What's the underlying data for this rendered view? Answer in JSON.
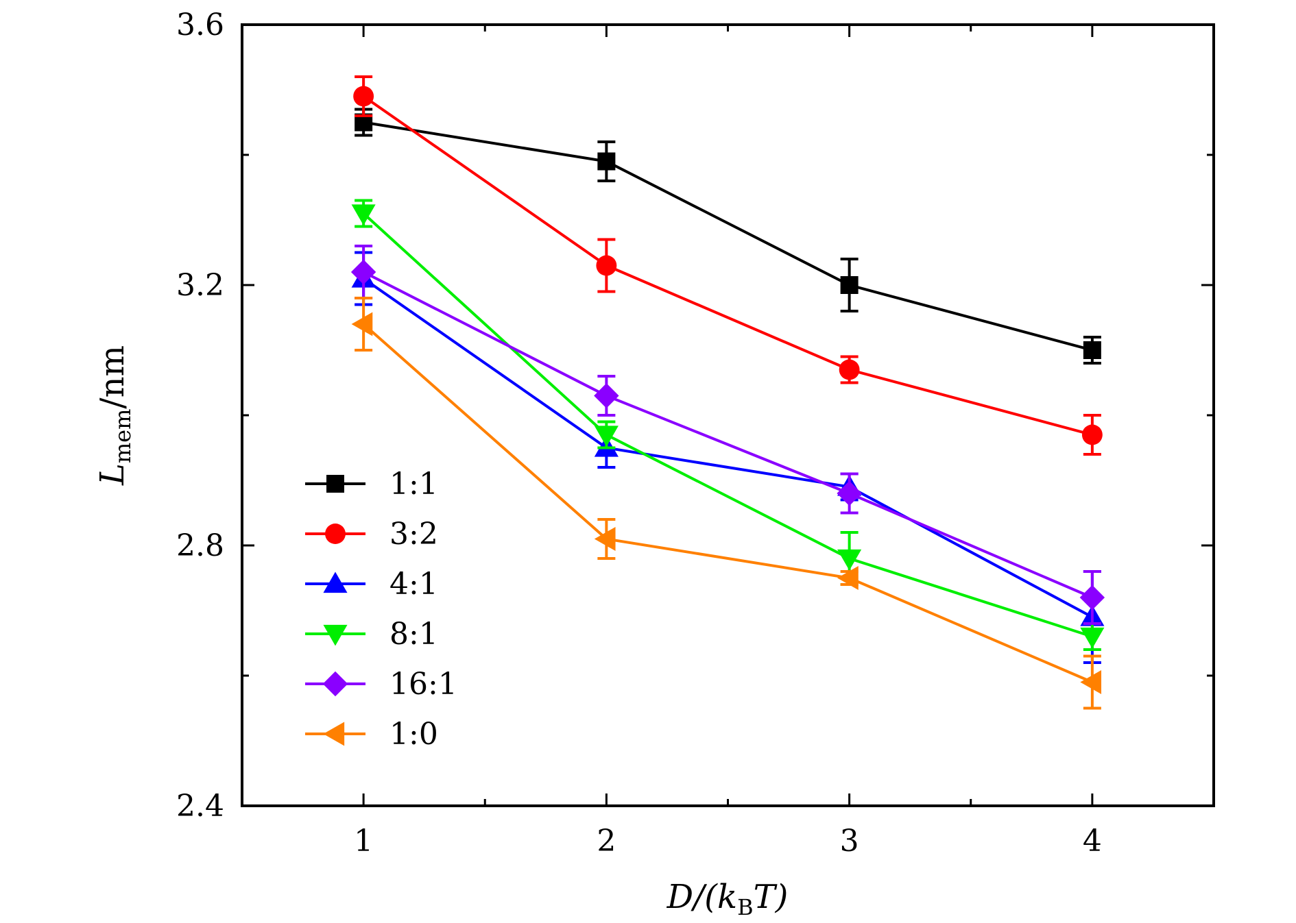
{
  "chart_data": {
    "type": "line",
    "title": "",
    "xlabel": {
      "main": "D/(k",
      "sub": "B",
      "tail": "T)"
    },
    "ylabel": {
      "main": "L",
      "sub": "mem",
      "tail": "/nm"
    },
    "x": [
      1,
      2,
      3,
      4
    ],
    "xlim": [
      0.5,
      4.5
    ],
    "ylim": [
      2.4,
      3.6
    ],
    "xticks": [
      "1",
      "2",
      "3",
      "4"
    ],
    "yticks": [
      "2.4",
      "2.8",
      "3.2",
      "3.6"
    ],
    "legend_position": "lower-left",
    "series": [
      {
        "name": "1:1",
        "color": "#000000",
        "marker": "square",
        "values": [
          3.45,
          3.39,
          3.2,
          3.1
        ],
        "errors": [
          0.02,
          0.03,
          0.04,
          0.02
        ]
      },
      {
        "name": "3:2",
        "color": "#ff0000",
        "marker": "circle",
        "values": [
          3.49,
          3.23,
          3.07,
          2.97
        ],
        "errors": [
          0.03,
          0.04,
          0.02,
          0.03
        ]
      },
      {
        "name": "4:1",
        "color": "#0000ff",
        "marker": "triangle-up",
        "values": [
          3.21,
          2.95,
          2.89,
          2.69
        ],
        "errors": [
          0.04,
          0.03,
          0.02,
          0.07
        ]
      },
      {
        "name": "8:1",
        "color": "#00ee00",
        "marker": "triangle-down",
        "values": [
          3.31,
          2.97,
          2.78,
          2.66
        ],
        "errors": [
          0.02,
          0.02,
          0.04,
          0.02
        ]
      },
      {
        "name": "16:1",
        "color": "#8a00ff",
        "marker": "diamond",
        "values": [
          3.22,
          3.03,
          2.88,
          2.72
        ],
        "errors": [
          0.04,
          0.03,
          0.03,
          0.04
        ]
      },
      {
        "name": "1:0",
        "color": "#ff8000",
        "marker": "triangle-left",
        "values": [
          3.14,
          2.81,
          2.75,
          2.59
        ],
        "errors": [
          0.04,
          0.03,
          0.01,
          0.04
        ]
      }
    ]
  }
}
